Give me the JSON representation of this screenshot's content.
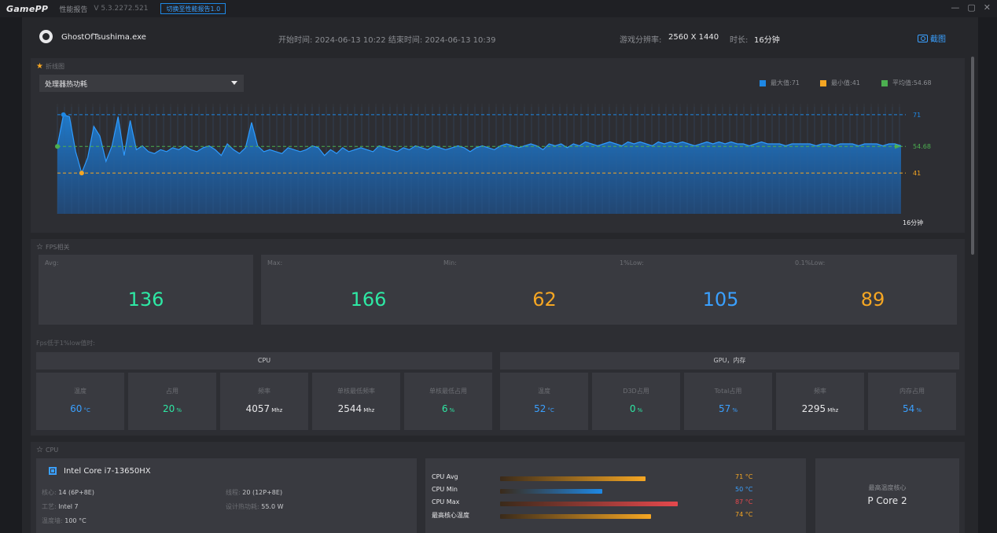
{
  "titlebar": {
    "logo": "GamePP",
    "title": "性能报告",
    "version": "V 5.3.2272.521",
    "switch_label": "切换至性能报告1.0"
  },
  "header": {
    "app_name": "GhostOfTsushima.exe",
    "time_range": "开始时间: 2024-06-13 10:22 结束时间: 2024-06-13 10:39",
    "resolution_label": "游戏分辨率:",
    "resolution_value": "2560 X 1440",
    "duration_label": "时长:",
    "duration_value": "16分钟",
    "screenshot_label": "截图"
  },
  "line_panel": {
    "title": "折线图",
    "selected_metric": "处理器热功耗",
    "legend": [
      {
        "label": "最大值:71",
        "color": "#1e88e5"
      },
      {
        "label": "最小值:41",
        "color": "#f5a623"
      },
      {
        "label": "平均值:54.68",
        "color": "#4caf50"
      }
    ],
    "x_end_label": "16分钟"
  },
  "chart_data": {
    "type": "area",
    "title": "",
    "xlabel": "",
    "ylabel": "",
    "x_end_label": "16分钟",
    "ref_lines": [
      {
        "label": "71",
        "value": 71,
        "color": "#1e88e5"
      },
      {
        "label": "54.68",
        "value": 54.68,
        "color": "#4caf50"
      },
      {
        "label": "41",
        "value": 41,
        "color": "#f5a623"
      }
    ],
    "series": [
      {
        "name": "处理器热功耗",
        "color": "#1e88e5",
        "values": [
          55,
          71,
          70,
          52,
          41,
          49,
          65,
          60,
          47,
          55,
          70,
          50,
          68,
          53,
          55,
          52,
          51,
          53,
          52,
          54,
          53,
          55,
          53,
          52,
          54,
          55,
          53,
          50,
          56,
          53,
          51,
          54,
          67,
          55,
          52,
          53,
          52,
          51,
          54,
          53,
          52,
          53,
          55,
          54,
          50,
          53,
          51,
          54,
          52,
          53,
          54,
          53,
          52,
          55,
          54,
          53,
          52,
          54,
          53,
          55,
          54,
          53,
          55,
          54,
          53,
          54,
          55,
          54,
          52,
          54,
          55,
          54,
          53,
          55,
          56,
          55,
          54,
          55,
          56,
          55,
          53,
          56,
          55,
          56,
          54,
          56,
          55,
          57,
          56,
          55,
          56,
          57,
          56,
          55,
          57,
          56,
          57,
          56,
          55,
          57,
          56,
          57,
          56,
          57,
          56,
          55,
          56,
          57,
          56,
          57,
          56,
          57,
          56,
          56,
          55,
          56,
          57,
          56,
          56,
          56,
          55,
          56,
          56,
          56,
          56,
          55,
          56,
          56,
          55,
          56,
          56,
          56,
          55,
          56,
          56,
          56,
          55,
          56,
          56,
          55
        ]
      }
    ]
  },
  "fps_panel": {
    "title": "FPS相关",
    "cards": [
      {
        "label": "Avg:",
        "value": "136",
        "color": "#2ee8a4"
      },
      {
        "label": "Max:",
        "value": "166",
        "color": "#2ee8a4"
      },
      {
        "label": "Min:",
        "value": "62",
        "color": "#f5a623"
      },
      {
        "label": "1%Low:",
        "value": "105",
        "color": "#3aa0ff"
      },
      {
        "label": "0.1%Low:",
        "value": "89",
        "color": "#f5a623"
      }
    ],
    "below_note": "Fps低于1%low值时:",
    "cpu_head": "CPU",
    "gpu_head": "GPU，内存",
    "cpu_metrics": [
      {
        "label": "温度",
        "value": "60",
        "unit": "°C",
        "color": "#3aa0ff"
      },
      {
        "label": "占用",
        "value": "20",
        "unit": "%",
        "color": "#2ee8a4"
      },
      {
        "label": "频率",
        "value": "4057",
        "unit": "Mhz",
        "color": "#e8e8ea"
      },
      {
        "label": "单核最低频率",
        "value": "2544",
        "unit": "Mhz",
        "color": "#e8e8ea"
      },
      {
        "label": "单核最低占用",
        "value": "6",
        "unit": "%",
        "color": "#2ee8a4"
      }
    ],
    "gpu_metrics": [
      {
        "label": "温度",
        "value": "52",
        "unit": "°C",
        "color": "#3aa0ff"
      },
      {
        "label": "D3D占用",
        "value": "0",
        "unit": "%",
        "color": "#2ee8a4"
      },
      {
        "label": "Total占用",
        "value": "57",
        "unit": "%",
        "color": "#3aa0ff"
      },
      {
        "label": "频率",
        "value": "2295",
        "unit": "Mhz",
        "color": "#e8e8ea"
      },
      {
        "label": "内存占用",
        "value": "54",
        "unit": "%",
        "color": "#3aa0ff"
      }
    ]
  },
  "cpu_panel": {
    "title": "CPU",
    "cpu_name": "Intel Core i7-13650HX",
    "cores_label": "核心:",
    "cores_value": "14 (6P+8E)",
    "threads_label": "线程:",
    "threads_value": "20 (12P+8E)",
    "process_label": "工艺:",
    "process_value": "Intel 7",
    "tdp_label": "设计热功耗:",
    "tdp_value": "55.0 W",
    "tjmax_label": "温度墙:",
    "tjmax_value": "100 °C",
    "temps": [
      {
        "label": "CPU Avg",
        "value": "71 °C",
        "fraction": 0.71,
        "color": "#f5a623",
        "value_color": "#f5a623"
      },
      {
        "label": "CPU Min",
        "value": "50 °C",
        "fraction": 0.5,
        "color": "#1e88e5",
        "value_color": "#3aa0ff"
      },
      {
        "label": "CPU Max",
        "value": "87 °C",
        "fraction": 0.87,
        "color": "#e5484d",
        "value_color": "#e5484d"
      },
      {
        "label": "最高核心温度",
        "value": "74 °C",
        "fraction": 0.74,
        "color": "#f5a623",
        "value_color": "#f5a623"
      }
    ],
    "hottest_label": "最高温度核心",
    "hottest_value": "P Core 2"
  }
}
